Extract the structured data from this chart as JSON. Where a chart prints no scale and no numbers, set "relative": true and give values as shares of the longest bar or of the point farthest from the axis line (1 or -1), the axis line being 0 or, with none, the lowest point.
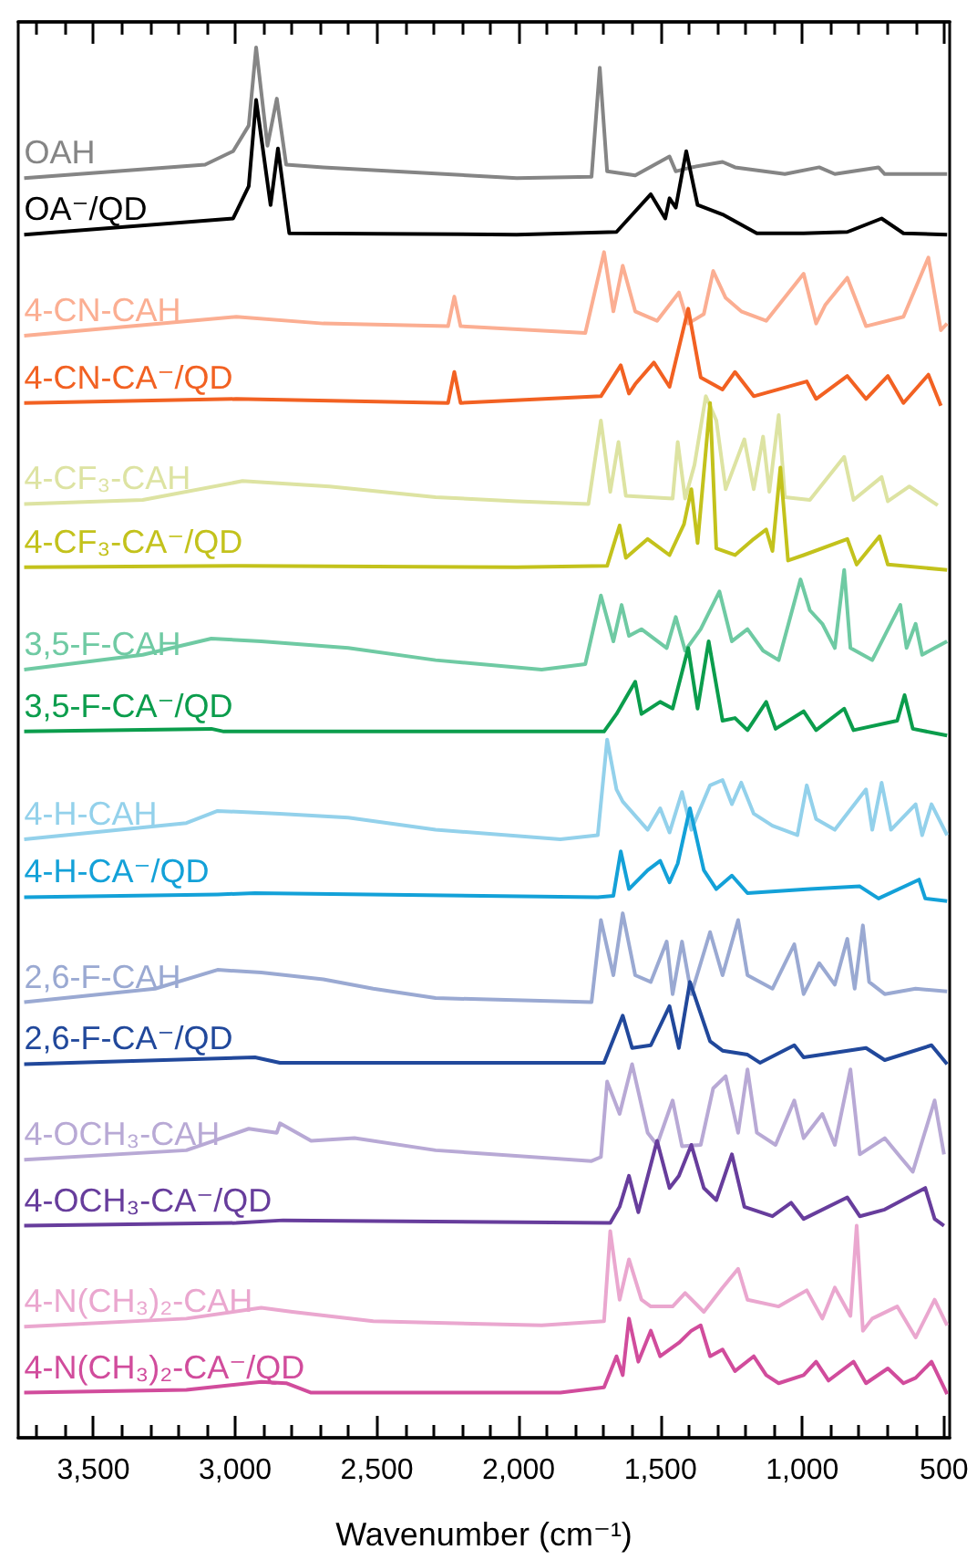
{
  "chart_data": {
    "type": "line",
    "relative": true,
    "xlabel": "Wavenumber (cm⁻¹)",
    "xlim": [
      3765,
      480
    ],
    "xticks": [
      {
        "value": 3700,
        "label": null
      },
      {
        "value": 3600,
        "label": null
      },
      {
        "value": 3500,
        "label": "3,500"
      },
      {
        "value": 3400,
        "label": null
      },
      {
        "value": 3300,
        "label": null
      },
      {
        "value": 3200,
        "label": null
      },
      {
        "value": 3100,
        "label": null
      },
      {
        "value": 3000,
        "label": "3,000"
      },
      {
        "value": 2900,
        "label": null
      },
      {
        "value": 2800,
        "label": null
      },
      {
        "value": 2700,
        "label": null
      },
      {
        "value": 2600,
        "label": null
      },
      {
        "value": 2500,
        "label": "2,500"
      },
      {
        "value": 2400,
        "label": null
      },
      {
        "value": 2300,
        "label": null
      },
      {
        "value": 2200,
        "label": null
      },
      {
        "value": 2100,
        "label": null
      },
      {
        "value": 2000,
        "label": "2,000"
      },
      {
        "value": 1900,
        "label": null
      },
      {
        "value": 1800,
        "label": null
      },
      {
        "value": 1700,
        "label": null
      },
      {
        "value": 1600,
        "label": null
      },
      {
        "value": 1500,
        "label": "1,500"
      },
      {
        "value": 1400,
        "label": null
      },
      {
        "value": 1300,
        "label": null
      },
      {
        "value": 1200,
        "label": null
      },
      {
        "value": 1100,
        "label": null
      },
      {
        "value": 1000,
        "label": "1,000"
      },
      {
        "value": 900,
        "label": null
      },
      {
        "value": 800,
        "label": null
      },
      {
        "value": 700,
        "label": null
      },
      {
        "value": 600,
        "label": null
      },
      {
        "value": 500,
        "label": "500"
      }
    ],
    "series": [
      {
        "name": "OAH",
        "color": "#858585",
        "x": [
          3744,
          3106,
          3007,
          2952,
          2926,
          2886,
          2853,
          2820,
          2689,
          2007,
          1743,
          1714,
          1688,
          1589,
          1468,
          1446,
          1391,
          1281,
          1237,
          1061,
          940,
          885,
          731,
          709,
          489
        ],
        "values": [
          0.903,
          0.913,
          0.923,
          0.942,
          1.0,
          0.927,
          0.962,
          0.913,
          0.911,
          0.903,
          0.904,
          0.985,
          0.908,
          0.905,
          0.919,
          0.908,
          0.911,
          0.915,
          0.911,
          0.906,
          0.911,
          0.906,
          0.911,
          0.906,
          0.906
        ]
      },
      {
        "name": "OA⁻/QD",
        "color": "#000000",
        "x": [
          3744,
          3007,
          2952,
          2926,
          2875,
          2849,
          2809,
          2007,
          1655,
          1534,
          1483,
          1468,
          1446,
          1409,
          1369,
          1281,
          1160,
          995,
          841,
          720,
          643,
          489
        ],
        "values": [
          0.861,
          0.873,
          0.897,
          0.961,
          0.883,
          0.925,
          0.862,
          0.861,
          0.863,
          0.891,
          0.873,
          0.888,
          0.881,
          0.923,
          0.883,
          0.876,
          0.862,
          0.862,
          0.863,
          0.873,
          0.862,
          0.861
        ]
      },
      {
        "name": "4-CN-CAH",
        "color": "#fbae92",
        "x": [
          3744,
          2996,
          2689,
          2249,
          2227,
          2205,
          1765,
          1699,
          1666,
          1633,
          1589,
          1512,
          1435,
          1402,
          1347,
          1314,
          1270,
          1215,
          1127,
          995,
          951,
          918,
          841,
          775,
          643,
          555,
          511,
          489
        ],
        "values": [
          0.786,
          0.8,
          0.795,
          0.793,
          0.815,
          0.793,
          0.788,
          0.848,
          0.804,
          0.838,
          0.804,
          0.797,
          0.818,
          0.795,
          0.802,
          0.834,
          0.814,
          0.804,
          0.797,
          0.832,
          0.795,
          0.809,
          0.829,
          0.793,
          0.8,
          0.844,
          0.79,
          0.795
        ]
      },
      {
        "name": "4-CN-CA⁻/QD",
        "color": "#f26122",
        "x": [
          3744,
          2996,
          2249,
          2227,
          2205,
          1710,
          1640,
          1611,
          1589,
          1523,
          1468,
          1402,
          1358,
          1281,
          1237,
          1171,
          984,
          951,
          841,
          775,
          698,
          643,
          555,
          511
        ],
        "values": [
          0.736,
          0.739,
          0.736,
          0.759,
          0.736,
          0.741,
          0.764,
          0.743,
          0.75,
          0.766,
          0.748,
          0.806,
          0.755,
          0.746,
          0.759,
          0.741,
          0.752,
          0.739,
          0.756,
          0.739,
          0.756,
          0.736,
          0.757,
          0.734
        ]
      },
      {
        "name": "4-CF₃-CAH",
        "color": "#dde3a2",
        "x": [
          3744,
          3326,
          2974,
          2667,
          2293,
          2007,
          1754,
          1710,
          1677,
          1648,
          1622,
          1457,
          1439,
          1413,
          1380,
          1340,
          1303,
          1270,
          1204,
          1171,
          1138,
          1116,
          1083,
          1061,
          973,
          852,
          819,
          720,
          698,
          622,
          522
        ],
        "values": [
          0.661,
          0.664,
          0.678,
          0.674,
          0.666,
          0.663,
          0.661,
          0.723,
          0.67,
          0.707,
          0.667,
          0.665,
          0.707,
          0.665,
          0.69,
          0.741,
          0.723,
          0.672,
          0.709,
          0.672,
          0.711,
          0.67,
          0.727,
          0.666,
          0.664,
          0.696,
          0.664,
          0.681,
          0.663,
          0.674,
          0.66
        ]
      },
      {
        "name": "4-CF₃-CA⁻/QD",
        "color": "#c3c21c",
        "x": [
          3744,
          2974,
          2007,
          1688,
          1644,
          1622,
          1545,
          1468,
          1417,
          1391,
          1369,
          1325,
          1303,
          1237,
          1171,
          1127,
          1105,
          1077,
          1050,
          995,
          841,
          808,
          727,
          698,
          489
        ],
        "values": [
          0.614,
          0.615,
          0.614,
          0.615,
          0.645,
          0.621,
          0.635,
          0.623,
          0.646,
          0.672,
          0.632,
          0.736,
          0.628,
          0.623,
          0.635,
          0.642,
          0.626,
          0.688,
          0.619,
          0.623,
          0.635,
          0.616,
          0.637,
          0.616,
          0.612
        ]
      },
      {
        "name": "3,5-F-CAH",
        "color": "#6fcaa3",
        "x": [
          3744,
          3326,
          3084,
          2908,
          2601,
          2293,
          1919,
          1765,
          1710,
          1666,
          1637,
          1611,
          1567,
          1478,
          1446,
          1413,
          1358,
          1292,
          1248,
          1193,
          1138,
          1083,
          1006,
          973,
          929,
          885,
          852,
          830,
          753,
          654,
          632,
          600,
          577,
          533,
          489
        ],
        "values": [
          0.538,
          0.549,
          0.561,
          0.559,
          0.554,
          0.545,
          0.538,
          0.542,
          0.593,
          0.559,
          0.586,
          0.563,
          0.568,
          0.554,
          0.577,
          0.552,
          0.568,
          0.596,
          0.559,
          0.568,
          0.552,
          0.545,
          0.605,
          0.582,
          0.572,
          0.554,
          0.612,
          0.554,
          0.545,
          0.586,
          0.554,
          0.572,
          0.549,
          0.554,
          0.559
        ]
      },
      {
        "name": "3,5-F-CA⁻/QD",
        "color": "#0b9d4c",
        "x": [
          3744,
          3084,
          3040,
          1699,
          1655,
          1589,
          1567,
          1501,
          1457,
          1402,
          1369,
          1330,
          1281,
          1237,
          1193,
          1127,
          1094,
          995,
          951,
          852,
          819,
          665,
          639,
          610,
          489
        ],
        "values": [
          0.492,
          0.494,
          0.492,
          0.492,
          0.505,
          0.529,
          0.505,
          0.514,
          0.509,
          0.554,
          0.509,
          0.559,
          0.5,
          0.502,
          0.493,
          0.514,
          0.494,
          0.507,
          0.493,
          0.509,
          0.493,
          0.5,
          0.519,
          0.494,
          0.489
        ]
      },
      {
        "name": "4-H-CAH",
        "color": "#93d1eb",
        "x": [
          3744,
          3172,
          3062,
          2843,
          2601,
          2293,
          1853,
          1721,
          1688,
          1655,
          1633,
          1545,
          1501,
          1468,
          1424,
          1391,
          1325,
          1281,
          1248,
          1215,
          1171,
          1105,
          1017,
          984,
          951,
          885,
          775,
          753,
          720,
          687,
          600,
          577,
          544,
          489
        ],
        "values": [
          0.412,
          0.424,
          0.433,
          0.431,
          0.428,
          0.419,
          0.412,
          0.415,
          0.486,
          0.449,
          0.44,
          0.419,
          0.435,
          0.417,
          0.447,
          0.419,
          0.452,
          0.456,
          0.438,
          0.454,
          0.431,
          0.422,
          0.415,
          0.452,
          0.427,
          0.419,
          0.449,
          0.419,
          0.454,
          0.419,
          0.438,
          0.415,
          0.438,
          0.415
        ]
      },
      {
        "name": "4-H-CA⁻/QD",
        "color": "#13a1d8",
        "x": [
          3744,
          3062,
          2930,
          1721,
          1666,
          1640,
          1611,
          1545,
          1501,
          1468,
          1439,
          1396,
          1347,
          1303,
          1248,
          1193,
          973,
          797,
          731,
          588,
          566,
          489
        ],
        "values": [
          0.369,
          0.371,
          0.372,
          0.369,
          0.37,
          0.403,
          0.375,
          0.389,
          0.396,
          0.38,
          0.394,
          0.435,
          0.389,
          0.375,
          0.385,
          0.372,
          0.375,
          0.377,
          0.368,
          0.382,
          0.368,
          0.366
        ]
      },
      {
        "name": "2,6-F-CAH",
        "color": "#9aa9d2",
        "x": [
          3744,
          3282,
          3062,
          2908,
          2689,
          2513,
          2293,
          1743,
          1710,
          1666,
          1633,
          1589,
          1534,
          1478,
          1457,
          1424,
          1391,
          1325,
          1281,
          1226,
          1193,
          1105,
          1028,
          995,
          940,
          885,
          841,
          815,
          786,
          764,
          709,
          600,
          489
        ],
        "values": [
          0.291,
          0.301,
          0.315,
          0.313,
          0.308,
          0.301,
          0.294,
          0.291,
          0.352,
          0.311,
          0.357,
          0.311,
          0.306,
          0.336,
          0.297,
          0.336,
          0.297,
          0.343,
          0.311,
          0.352,
          0.311,
          0.301,
          0.334,
          0.297,
          0.32,
          0.304,
          0.338,
          0.301,
          0.348,
          0.306,
          0.297,
          0.301,
          0.299
        ]
      },
      {
        "name": "2,6-F-CA⁻/QD",
        "color": "#21489b",
        "x": [
          3744,
          2930,
          2842,
          1699,
          1633,
          1600,
          1534,
          1468,
          1435,
          1396,
          1325,
          1281,
          1193,
          1149,
          1028,
          995,
          775,
          709,
          544,
          489
        ],
        "values": [
          0.245,
          0.25,
          0.246,
          0.246,
          0.281,
          0.257,
          0.259,
          0.288,
          0.257,
          0.306,
          0.262,
          0.255,
          0.252,
          0.246,
          0.259,
          0.25,
          0.257,
          0.248,
          0.259,
          0.245
        ]
      },
      {
        "name": "4-OCH₃-CAH",
        "color": "#b8a9d5",
        "x": [
          3744,
          3172,
          2952,
          2853,
          2842,
          2732,
          2579,
          2293,
          1743,
          1710,
          1688,
          1644,
          1600,
          1545,
          1512,
          1457,
          1424,
          1358,
          1314,
          1270,
          1226,
          1193,
          1160,
          1094,
          1028,
          995,
          929,
          885,
          830,
          797,
          709,
          654,
          610,
          533,
          500
        ],
        "values": [
          0.174,
          0.181,
          0.197,
          0.194,
          0.201,
          0.188,
          0.19,
          0.181,
          0.173,
          0.176,
          0.232,
          0.208,
          0.245,
          0.194,
          0.185,
          0.218,
          0.184,
          0.185,
          0.227,
          0.236,
          0.194,
          0.241,
          0.194,
          0.185,
          0.218,
          0.19,
          0.208,
          0.185,
          0.241,
          0.178,
          0.19,
          0.176,
          0.165,
          0.218,
          0.178
        ]
      },
      {
        "name": "4-OCH₃-CA⁻/QD",
        "color": "#673d9c",
        "x": [
          3744,
          2996,
          2831,
          1677,
          1644,
          1611,
          1578,
          1512,
          1468,
          1435,
          1391,
          1347,
          1303,
          1248,
          1204,
          1105,
          1039,
          995,
          841,
          797,
          709,
          566,
          533,
          500
        ],
        "values": [
          0.125,
          0.127,
          0.129,
          0.127,
          0.139,
          0.162,
          0.135,
          0.188,
          0.153,
          0.162,
          0.185,
          0.153,
          0.144,
          0.178,
          0.139,
          0.132,
          0.142,
          0.13,
          0.146,
          0.132,
          0.137,
          0.153,
          0.13,
          0.125
        ]
      },
      {
        "name": "4-N(CH₃)₂-CAH",
        "color": "#eaa7cf",
        "x": [
          3744,
          3172,
          2908,
          2798,
          2513,
          1919,
          1699,
          1677,
          1644,
          1611,
          1567,
          1534,
          1457,
          1413,
          1347,
          1281,
          1226,
          1193,
          1083,
          984,
          929,
          885,
          830,
          808,
          786,
          753,
          665,
          600,
          533,
          489
        ],
        "values": [
          0.05,
          0.056,
          0.064,
          0.061,
          0.054,
          0.051,
          0.054,
          0.121,
          0.07,
          0.1,
          0.07,
          0.065,
          0.065,
          0.075,
          0.061,
          0.079,
          0.093,
          0.07,
          0.065,
          0.077,
          0.056,
          0.079,
          0.058,
          0.125,
          0.047,
          0.056,
          0.065,
          0.042,
          0.07,
          0.051
        ]
      },
      {
        "name": "4-N(CH₃)₂-CA⁻/QD",
        "color": "#d14c9c",
        "x": [
          3744,
          3172,
          2908,
          2820,
          2732,
          1853,
          1699,
          1655,
          1633,
          1611,
          1578,
          1534,
          1501,
          1435,
          1391,
          1358,
          1325,
          1281,
          1237,
          1171,
          1127,
          1083,
          995,
          951,
          907,
          819,
          775,
          698,
          643,
          600,
          544,
          489
        ],
        "values": [
          0.001,
          0.003,
          0.009,
          0.008,
          0.001,
          0.001,
          0.005,
          0.028,
          0.014,
          0.056,
          0.024,
          0.047,
          0.028,
          0.038,
          0.047,
          0.051,
          0.028,
          0.033,
          0.017,
          0.028,
          0.014,
          0.008,
          0.014,
          0.024,
          0.01,
          0.024,
          0.008,
          0.019,
          0.008,
          0.012,
          0.024,
          0.0
        ]
      }
    ]
  }
}
